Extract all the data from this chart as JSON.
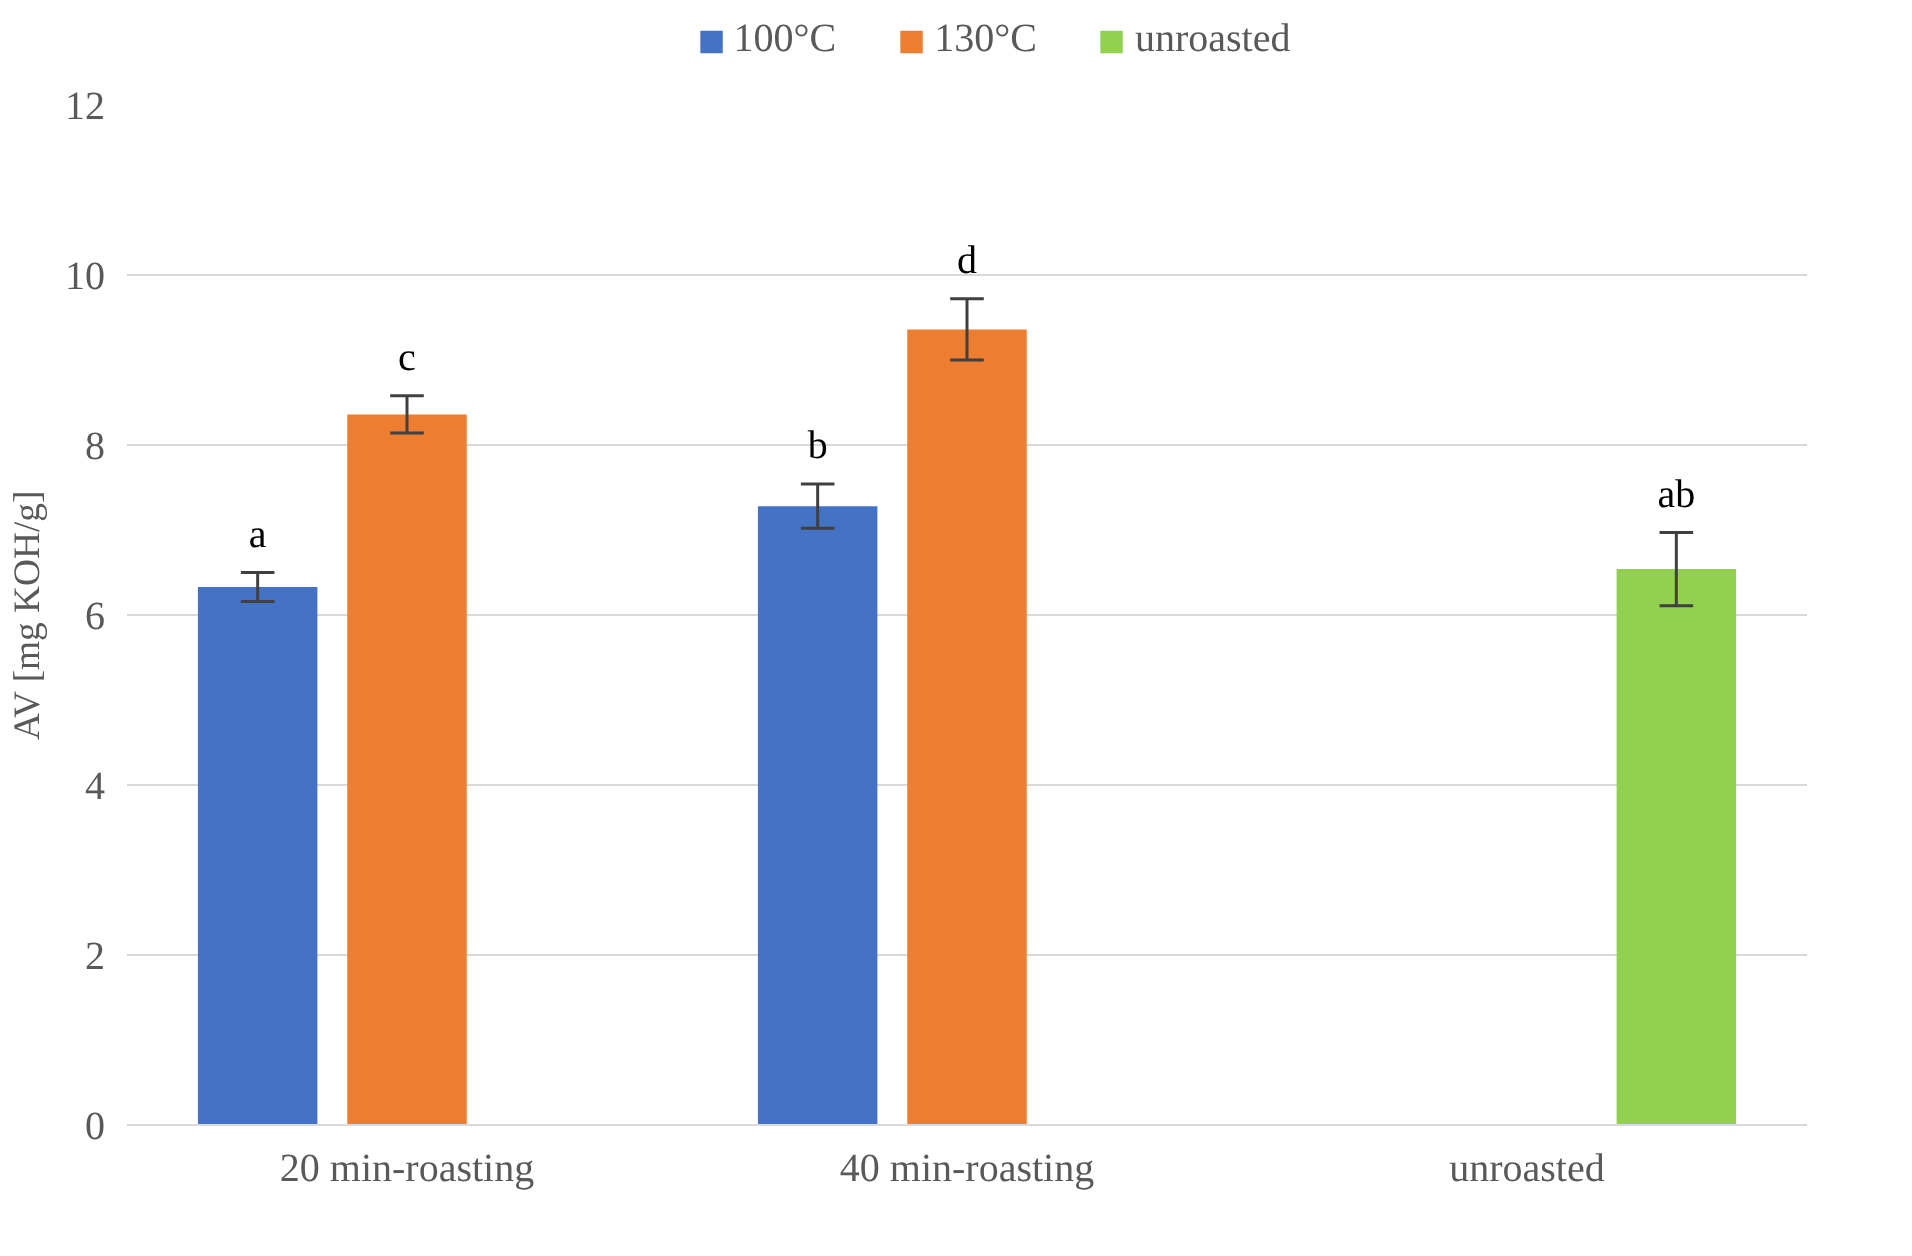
{
  "chart_data": {
    "type": "bar",
    "categories": [
      "20 min-roasting",
      "40 min-roasting",
      "unroasted"
    ],
    "series": [
      {
        "name": "100°C",
        "color": "#4472c4",
        "values": [
          6.33,
          7.28,
          null
        ],
        "errors": [
          0.17,
          0.26,
          null
        ],
        "value_labels": [
          "a",
          "b",
          null
        ]
      },
      {
        "name": "130°C",
        "color": "#ed7d31",
        "values": [
          8.36,
          9.36,
          null
        ],
        "errors": [
          0.22,
          0.36,
          null
        ],
        "value_labels": [
          "c",
          "d",
          null
        ]
      },
      {
        "name": "unroasted",
        "color": "#92d050",
        "values": [
          null,
          null,
          6.54
        ],
        "errors": [
          null,
          null,
          0.43
        ],
        "value_labels": [
          null,
          null,
          "ab"
        ]
      }
    ],
    "ylabel": "AV [mg KOH/g]",
    "ylim": [
      0,
      12
    ],
    "yticks": [
      0,
      2,
      4,
      6,
      8,
      10,
      12
    ],
    "grid": "y",
    "legend": "top"
  }
}
